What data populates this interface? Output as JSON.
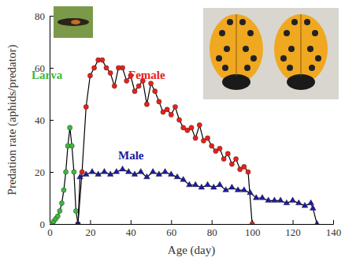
{
  "chart_data": {
    "type": "line",
    "x_label": "Age (day)",
    "y_label": "Predation rate (aphids/predator)",
    "xlim": [
      0,
      140
    ],
    "xticks": [
      0,
      20,
      40,
      60,
      80,
      100,
      120,
      140
    ],
    "ylim": [
      0,
      80
    ],
    "yticks": [
      0,
      20,
      40,
      60,
      80
    ],
    "series": [
      {
        "name": "Larva",
        "color": "#3cb83c",
        "marker": "circle",
        "x": [
          1,
          2,
          3,
          4,
          5,
          6,
          7,
          8,
          9,
          10,
          11,
          12,
          13,
          14
        ],
        "values": [
          0,
          1,
          2,
          3,
          5,
          8,
          13,
          20,
          30,
          37,
          30,
          20,
          5,
          0
        ]
      },
      {
        "name": "Female",
        "color": "#e8201a",
        "marker": "circle",
        "x": [
          14,
          16,
          18,
          20,
          22,
          24,
          26,
          28,
          30,
          32,
          34,
          36,
          38,
          40,
          42,
          44,
          46,
          48,
          50,
          52,
          54,
          56,
          58,
          60,
          62,
          64,
          66,
          68,
          70,
          72,
          74,
          76,
          78,
          80,
          82,
          84,
          86,
          88,
          90,
          92,
          94,
          96,
          98,
          100
        ],
        "values": [
          0,
          20,
          45,
          57,
          60,
          63,
          63,
          60,
          58,
          53,
          60,
          60,
          55,
          57,
          51,
          53,
          55,
          46,
          54,
          51,
          47,
          43,
          44,
          42,
          45,
          40,
          37,
          36,
          37,
          33,
          38,
          32,
          33,
          30,
          28,
          29,
          25,
          27,
          23,
          25,
          21,
          22,
          20,
          0
        ]
      },
      {
        "name": "Male",
        "color": "#1a1aa0",
        "marker": "triangle",
        "x": [
          14,
          15,
          18,
          21,
          24,
          27,
          30,
          33,
          36,
          39,
          42,
          45,
          48,
          51,
          54,
          57,
          60,
          63,
          66,
          69,
          72,
          75,
          78,
          81,
          84,
          87,
          90,
          93,
          96,
          99,
          102,
          105,
          108,
          111,
          114,
          117,
          120,
          123,
          126,
          129,
          130,
          132
        ],
        "values": [
          0,
          18,
          19,
          20,
          19,
          20,
          19,
          20,
          21,
          20,
          19,
          20,
          18,
          20,
          19,
          20,
          19,
          18,
          17,
          15,
          15,
          14,
          15,
          14,
          15,
          13,
          14,
          13,
          13,
          12,
          10,
          10,
          9,
          9,
          9,
          8,
          9,
          8,
          7,
          8,
          6,
          0
        ]
      }
    ]
  }
}
